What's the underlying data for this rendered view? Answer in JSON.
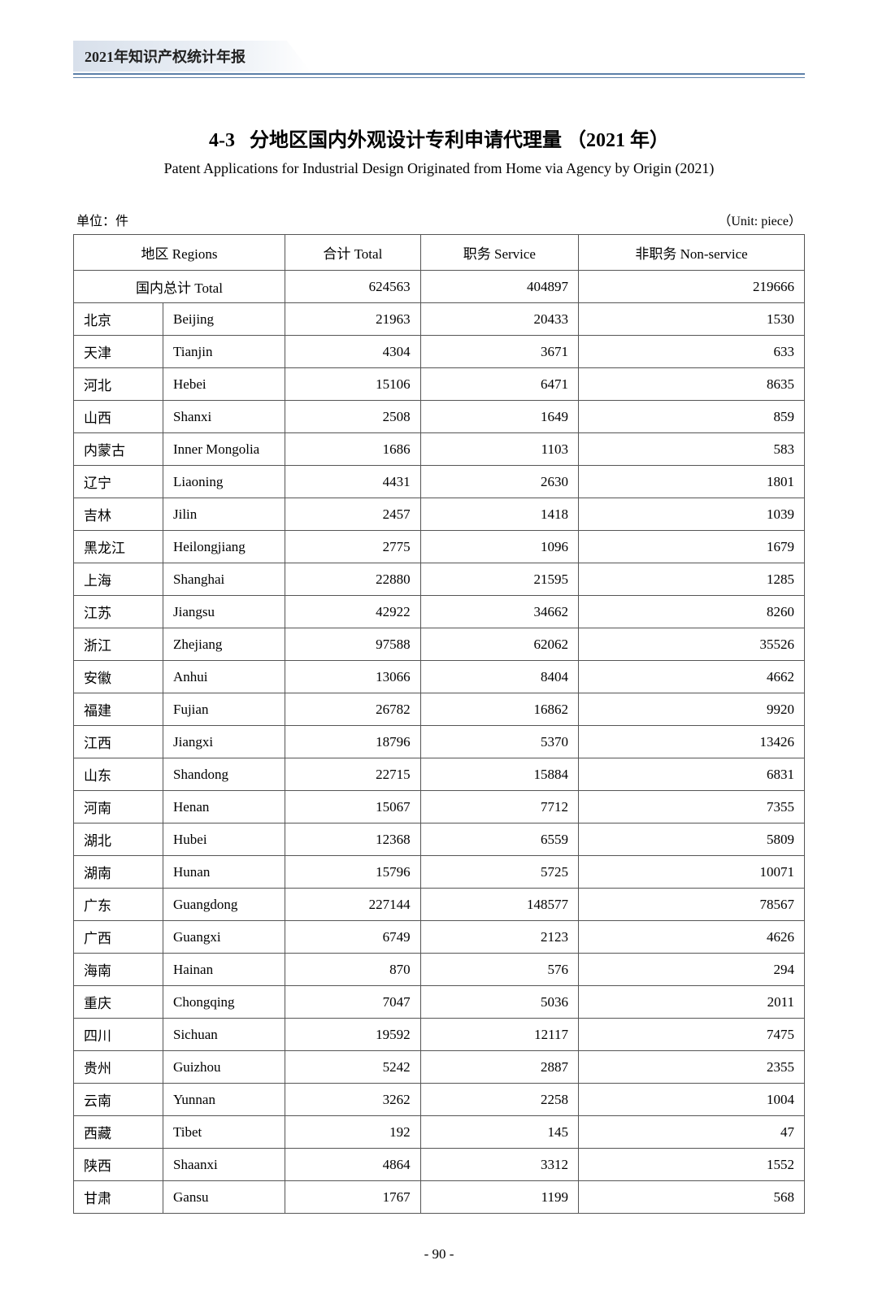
{
  "header": {
    "yearbook_title": "2021年知识产权统计年报"
  },
  "title": {
    "number": "4-3",
    "cn": "分地区国内外观设计专利申请代理量",
    "year_suffix": "（2021 年）",
    "en": "Patent Applications for Industrial Design Originated from Home via Agency by Origin (2021)"
  },
  "unit": {
    "left": "单位：件",
    "right": "（Unit: piece）"
  },
  "table": {
    "columns": {
      "region": "地区 Regions",
      "total": "合计 Total",
      "service": "职务 Service",
      "nonservice": "非职务 Non-service"
    },
    "total_row": {
      "label": "国内总计 Total",
      "total": "624563",
      "service": "404897",
      "nonservice": "219666"
    },
    "rows": [
      {
        "cn": "北京",
        "en": "Beijing",
        "total": "21963",
        "service": "20433",
        "nonservice": "1530"
      },
      {
        "cn": "天津",
        "en": "Tianjin",
        "total": "4304",
        "service": "3671",
        "nonservice": "633"
      },
      {
        "cn": "河北",
        "en": "Hebei",
        "total": "15106",
        "service": "6471",
        "nonservice": "8635"
      },
      {
        "cn": "山西",
        "en": "Shanxi",
        "total": "2508",
        "service": "1649",
        "nonservice": "859"
      },
      {
        "cn": "内蒙古",
        "en": "Inner Mongolia",
        "total": "1686",
        "service": "1103",
        "nonservice": "583"
      },
      {
        "cn": "辽宁",
        "en": "Liaoning",
        "total": "4431",
        "service": "2630",
        "nonservice": "1801"
      },
      {
        "cn": "吉林",
        "en": "Jilin",
        "total": "2457",
        "service": "1418",
        "nonservice": "1039"
      },
      {
        "cn": "黑龙江",
        "en": "Heilongjiang",
        "total": "2775",
        "service": "1096",
        "nonservice": "1679"
      },
      {
        "cn": "上海",
        "en": "Shanghai",
        "total": "22880",
        "service": "21595",
        "nonservice": "1285"
      },
      {
        "cn": "江苏",
        "en": "Jiangsu",
        "total": "42922",
        "service": "34662",
        "nonservice": "8260"
      },
      {
        "cn": "浙江",
        "en": "Zhejiang",
        "total": "97588",
        "service": "62062",
        "nonservice": "35526"
      },
      {
        "cn": "安徽",
        "en": "Anhui",
        "total": "13066",
        "service": "8404",
        "nonservice": "4662"
      },
      {
        "cn": "福建",
        "en": "Fujian",
        "total": "26782",
        "service": "16862",
        "nonservice": "9920"
      },
      {
        "cn": "江西",
        "en": "Jiangxi",
        "total": "18796",
        "service": "5370",
        "nonservice": "13426"
      },
      {
        "cn": "山东",
        "en": "Shandong",
        "total": "22715",
        "service": "15884",
        "nonservice": "6831"
      },
      {
        "cn": "河南",
        "en": "Henan",
        "total": "15067",
        "service": "7712",
        "nonservice": "7355"
      },
      {
        "cn": "湖北",
        "en": "Hubei",
        "total": "12368",
        "service": "6559",
        "nonservice": "5809"
      },
      {
        "cn": "湖南",
        "en": "Hunan",
        "total": "15796",
        "service": "5725",
        "nonservice": "10071"
      },
      {
        "cn": "广东",
        "en": "Guangdong",
        "total": "227144",
        "service": "148577",
        "nonservice": "78567"
      },
      {
        "cn": "广西",
        "en": "Guangxi",
        "total": "6749",
        "service": "2123",
        "nonservice": "4626"
      },
      {
        "cn": "海南",
        "en": "Hainan",
        "total": "870",
        "service": "576",
        "nonservice": "294"
      },
      {
        "cn": "重庆",
        "en": "Chongqing",
        "total": "7047",
        "service": "5036",
        "nonservice": "2011"
      },
      {
        "cn": "四川",
        "en": "Sichuan",
        "total": "19592",
        "service": "12117",
        "nonservice": "7475"
      },
      {
        "cn": "贵州",
        "en": "Guizhou",
        "total": "5242",
        "service": "2887",
        "nonservice": "2355"
      },
      {
        "cn": "云南",
        "en": "Yunnan",
        "total": "3262",
        "service": "2258",
        "nonservice": "1004"
      },
      {
        "cn": "西藏",
        "en": "Tibet",
        "total": "192",
        "service": "145",
        "nonservice": "47"
      },
      {
        "cn": "陕西",
        "en": "Shaanxi",
        "total": "4864",
        "service": "3312",
        "nonservice": "1552"
      },
      {
        "cn": "甘肃",
        "en": "Gansu",
        "total": "1767",
        "service": "1199",
        "nonservice": "568"
      }
    ]
  },
  "page_number": "- 90 -",
  "style": {
    "accent_color": "#5c7fa8",
    "border_color": "#555555",
    "background": "#ffffff",
    "text_color": "#000000",
    "title_fontsize_pt": 18,
    "subtitle_fontsize_pt": 13,
    "body_fontsize_pt": 12
  }
}
